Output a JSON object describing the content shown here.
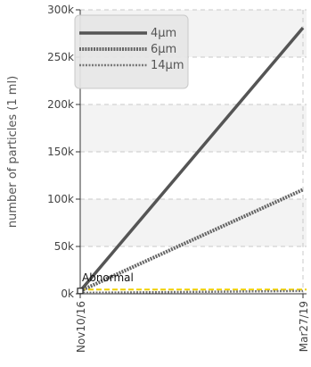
{
  "chart_data": {
    "type": "line",
    "title": "",
    "xlabel": "",
    "ylabel": "number of particles (1 ml)",
    "x": [
      "Nov10/16",
      "Mar27/19"
    ],
    "ylim": [
      0,
      300000
    ],
    "yticks": [
      0,
      50000,
      100000,
      150000,
      200000,
      250000,
      300000
    ],
    "ytick_labels": [
      "0k",
      "50k",
      "100k",
      "150k",
      "200k",
      "250k",
      "300k"
    ],
    "grid": true,
    "legend_position": "top-left",
    "series": [
      {
        "name": "4μm",
        "values": [
          3000,
          281000
        ],
        "color": "#555555",
        "style": "solid"
      },
      {
        "name": "6μm",
        "values": [
          3000,
          110000
        ],
        "color": "#666666",
        "style": "dotted-thick"
      },
      {
        "name": "14μm",
        "values": [
          1000,
          3000
        ],
        "color": "#777777",
        "style": "dotted"
      }
    ],
    "reference_line": {
      "value": 4500,
      "color": "#f0d000",
      "label": "Abnormal"
    }
  }
}
